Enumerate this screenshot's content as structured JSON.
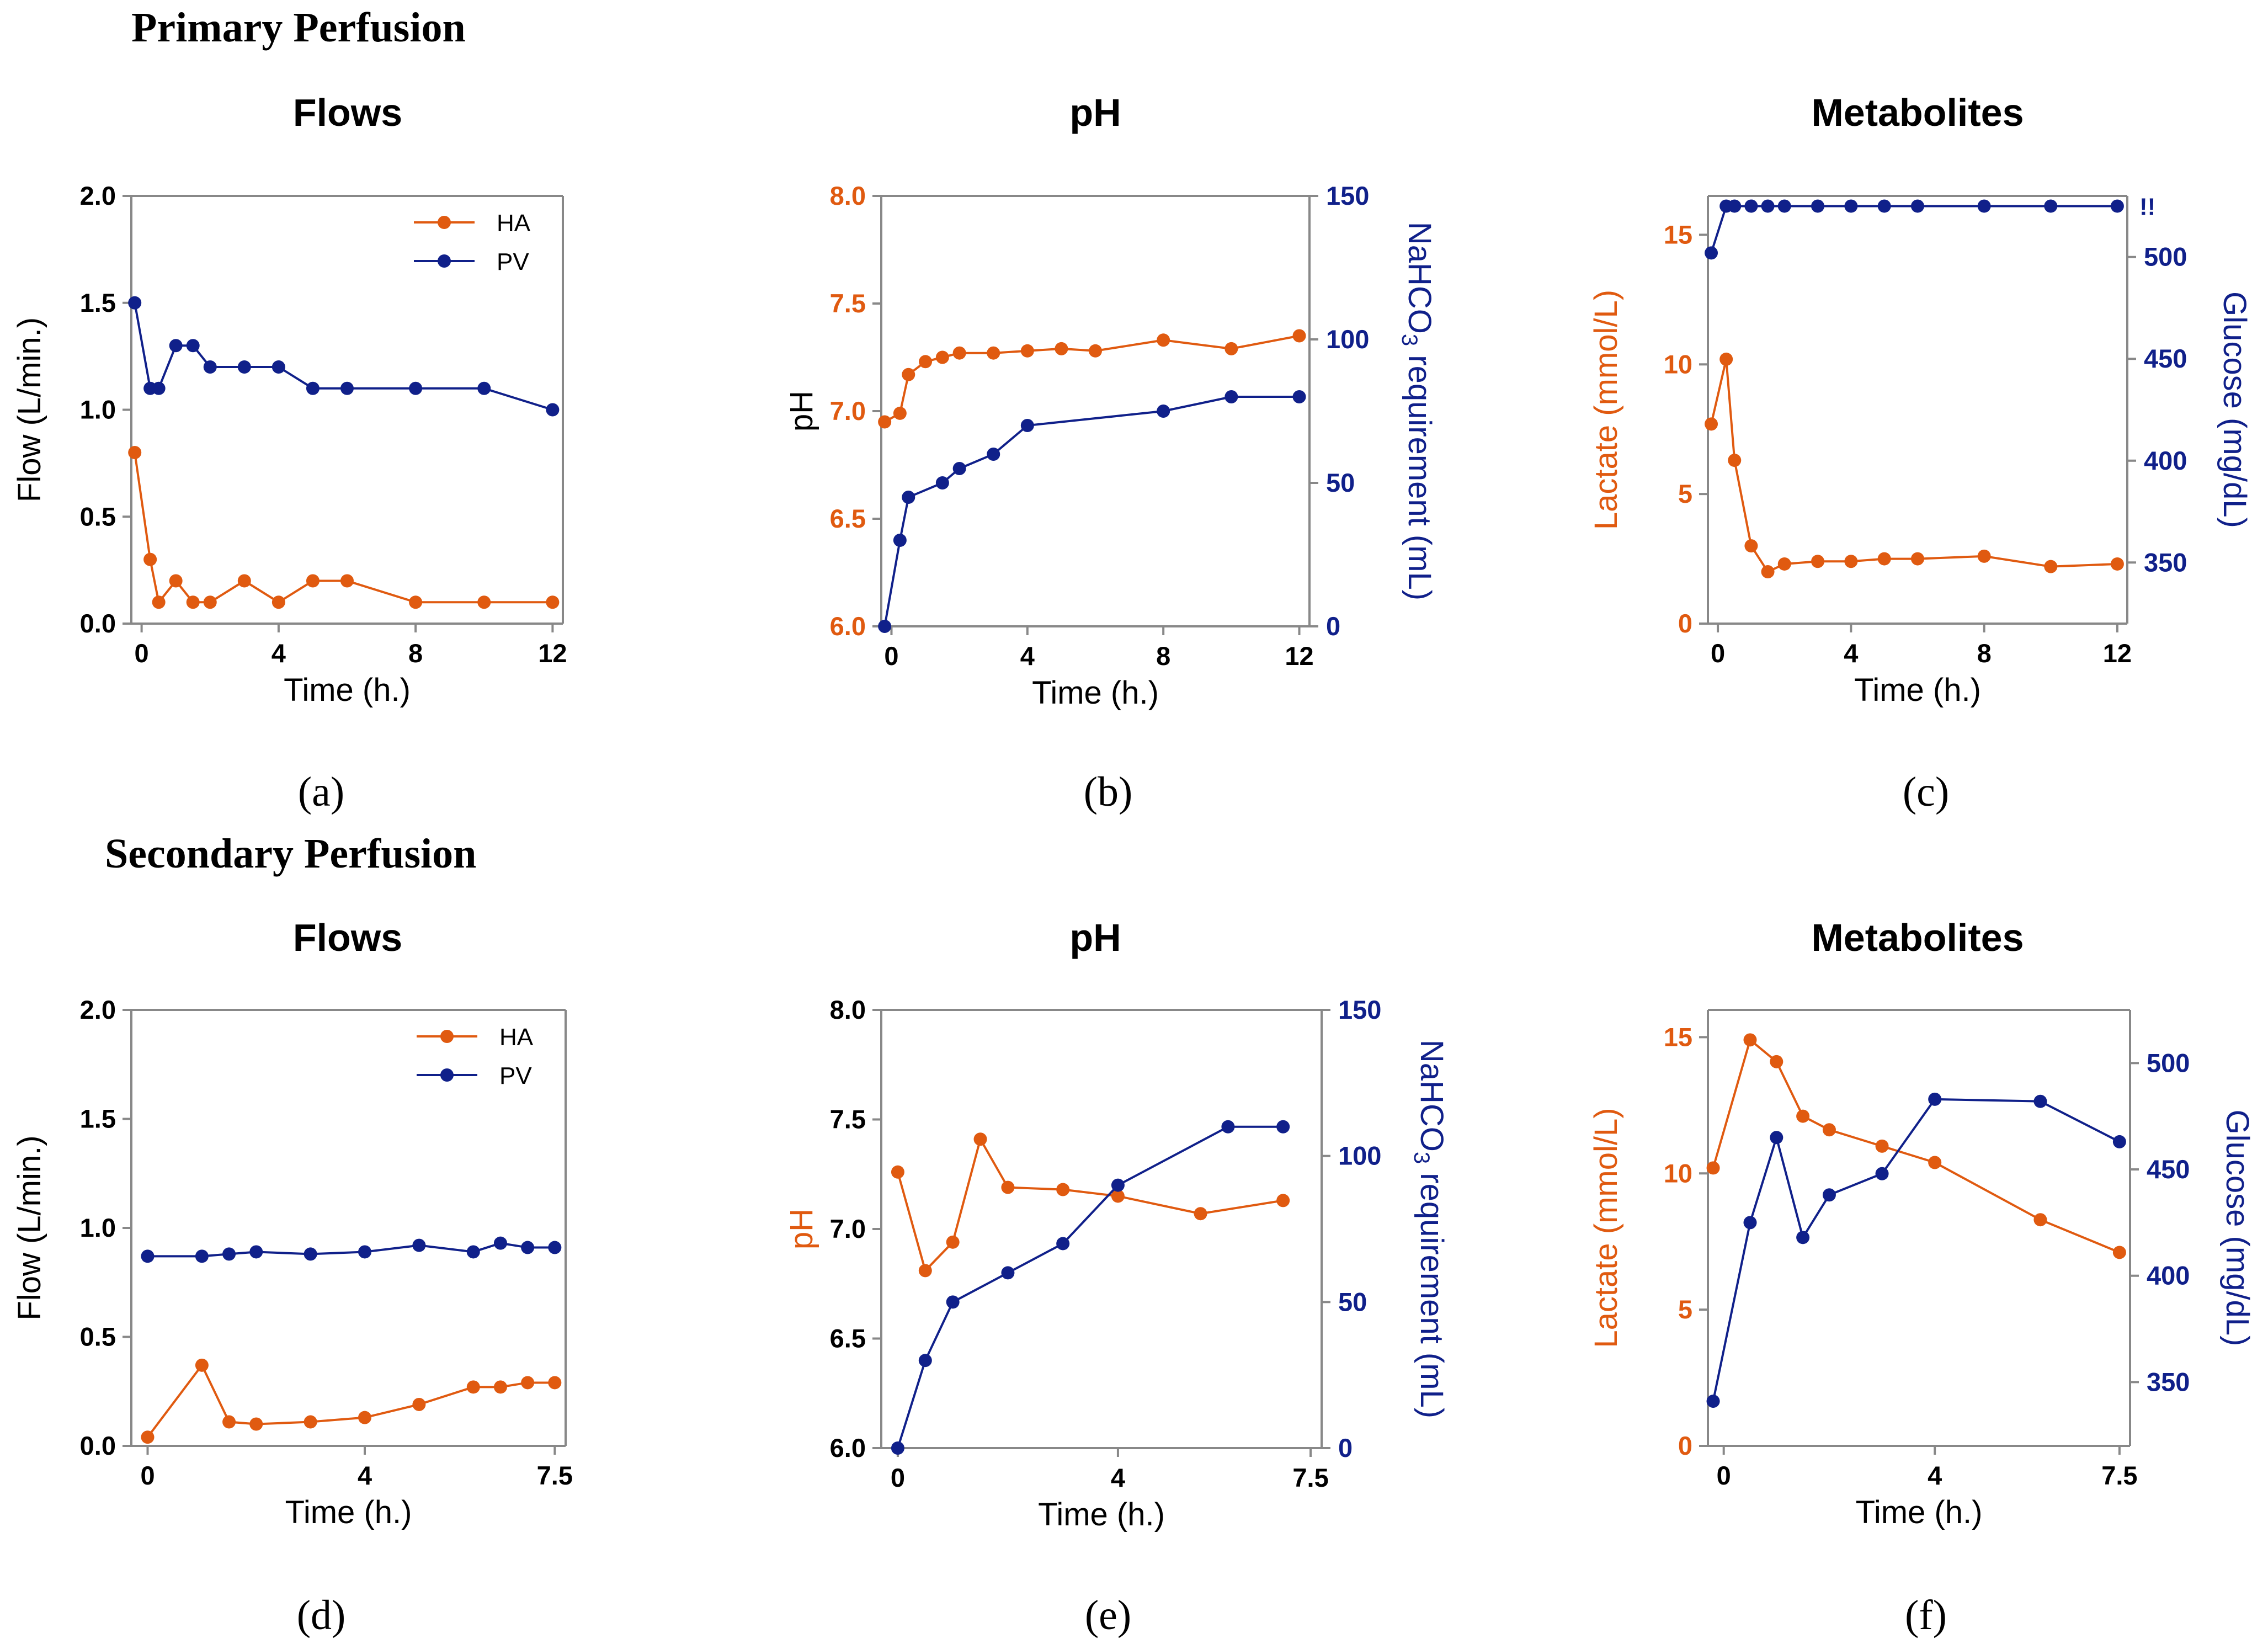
{
  "sections": [
    "Primary Perfusion",
    "Secondary Perfusion"
  ],
  "colors": {
    "orange": "#e05a10",
    "navy": "#10208a",
    "axis": "#888888"
  },
  "chart_data": [
    {
      "id": "a",
      "label": "(a)",
      "type": "line",
      "title": "Flows",
      "xlabel": "Time (h.)",
      "ylabel": "Flow (L/min.)",
      "xlim": [
        -0.3,
        12.3
      ],
      "xticks": [
        0,
        4,
        8,
        12
      ],
      "xtick_labels": [
        "0",
        "4",
        "8",
        "12"
      ],
      "left_axis": {
        "lim": [
          0,
          2
        ],
        "ticks": [
          0,
          0.5,
          1,
          1.5,
          2
        ],
        "tick_labels": [
          "0.0",
          "0.5",
          "1.0",
          "1.5",
          "2.0"
        ],
        "color": "black"
      },
      "legend": "top-right",
      "series": [
        {
          "name": "HA",
          "axis": "left",
          "color": "orange",
          "x": [
            -0.2,
            0.25,
            0.5,
            1,
            1.5,
            2,
            3,
            4,
            5,
            6,
            8,
            10,
            12
          ],
          "y": [
            0.8,
            0.3,
            0.1,
            0.2,
            0.1,
            0.1,
            0.2,
            0.1,
            0.2,
            0.2,
            0.1,
            0.1,
            0.1
          ]
        },
        {
          "name": "PV",
          "axis": "left",
          "color": "navy",
          "x": [
            -0.2,
            0.25,
            0.5,
            1,
            1.5,
            2,
            3,
            4,
            5,
            6,
            8,
            10,
            12
          ],
          "y": [
            1.5,
            1.1,
            1.1,
            1.3,
            1.3,
            1.2,
            1.2,
            1.2,
            1.1,
            1.1,
            1.1,
            1.1,
            1.0
          ]
        }
      ]
    },
    {
      "id": "b",
      "label": "(b)",
      "type": "line",
      "title": "pH",
      "xlabel": "Time (h.)",
      "ylabel": "pH",
      "y2label_main": "NaHCO",
      "y2label_sub": "3",
      "y2label_rest": " requirement (mL)",
      "xlim": [
        -0.3,
        12.3
      ],
      "xticks": [
        0,
        4,
        8,
        12
      ],
      "xtick_labels": [
        "0",
        "4",
        "8",
        "12"
      ],
      "left_axis": {
        "lim": [
          6.0,
          8.0
        ],
        "ticks": [
          6.0,
          6.5,
          7.0,
          7.5,
          8.0
        ],
        "tick_labels": [
          "6.0",
          "6.5",
          "7.0",
          "7.5",
          "8.0"
        ],
        "color": "orange"
      },
      "right_axis": {
        "lim": [
          0,
          150
        ],
        "ticks": [
          0,
          50,
          100,
          150
        ],
        "tick_labels": [
          "0",
          "50",
          "100",
          "150"
        ],
        "color": "navy"
      },
      "series": [
        {
          "name": "pH",
          "axis": "left",
          "color": "orange",
          "x": [
            -0.2,
            0.25,
            0.5,
            1,
            1.5,
            2,
            3,
            4,
            5,
            6,
            8,
            10,
            12
          ],
          "y": [
            6.95,
            6.99,
            7.17,
            7.23,
            7.25,
            7.27,
            7.27,
            7.28,
            7.29,
            7.28,
            7.33,
            7.29,
            7.35
          ]
        },
        {
          "name": "NaHCO3",
          "axis": "right",
          "color": "navy",
          "x": [
            -0.2,
            0.25,
            0.5,
            1.5,
            2,
            3,
            4,
            8,
            10,
            12
          ],
          "y": [
            0,
            30,
            45,
            50,
            55,
            60,
            70,
            75,
            80,
            80
          ]
        }
      ]
    },
    {
      "id": "c",
      "label": "(c)",
      "type": "line",
      "title": "Metabolites",
      "xlabel": "Time (h.)",
      "ylabel": "Lactate (mmol/L)",
      "y2label": "Glucose (mg/dL)",
      "annotation": "!!",
      "xlim": [
        -0.3,
        12.3
      ],
      "xticks": [
        0,
        4,
        8,
        12
      ],
      "xtick_labels": [
        "0",
        "4",
        "8",
        "12"
      ],
      "left_axis": {
        "lim": [
          0,
          16.5
        ],
        "ticks": [
          0,
          5,
          10,
          15
        ],
        "tick_labels": [
          "0",
          "5",
          "10",
          "15"
        ],
        "color": "orange"
      },
      "right_axis": {
        "lim": [
          320,
          530
        ],
        "ticks": [
          350,
          400,
          450,
          500
        ],
        "tick_labels": [
          "350",
          "400",
          "450",
          "500"
        ],
        "color": "navy"
      },
      "series": [
        {
          "name": "Lactate",
          "axis": "left",
          "color": "orange",
          "x": [
            -0.2,
            0.25,
            0.5,
            1,
            1.5,
            2,
            3,
            4,
            5,
            6,
            8,
            10,
            12
          ],
          "y": [
            7.7,
            10.2,
            6.3,
            3.0,
            2.0,
            2.3,
            2.4,
            2.4,
            2.5,
            2.5,
            2.6,
            2.2,
            2.3
          ]
        },
        {
          "name": "Glucose",
          "axis": "right",
          "color": "navy",
          "x": [
            -0.2,
            0.25,
            0.5,
            1,
            1.5,
            2,
            3,
            4,
            5,
            6,
            8,
            10,
            12
          ],
          "y": [
            502,
            525,
            525,
            525,
            525,
            525,
            525,
            525,
            525,
            525,
            525,
            525,
            525
          ]
        }
      ]
    },
    {
      "id": "d",
      "label": "(d)",
      "type": "line",
      "title": "Flows",
      "xlabel": "Time (h.)",
      "ylabel": "Flow (L/min.)",
      "xlim": [
        -0.3,
        7.7
      ],
      "xticks": [
        0,
        4,
        7.5
      ],
      "xtick_labels": [
        "0",
        "4",
        "7.5"
      ],
      "left_axis": {
        "lim": [
          0,
          2
        ],
        "ticks": [
          0,
          0.5,
          1,
          1.5,
          2
        ],
        "tick_labels": [
          "0.0",
          "0.5",
          "1.0",
          "1.5",
          "2.0"
        ],
        "color": "black"
      },
      "legend": "top-right",
      "series": [
        {
          "name": "HA",
          "axis": "left",
          "color": "orange",
          "x": [
            0,
            1,
            1.5,
            2,
            3,
            4,
            5,
            6,
            6.5,
            7,
            7.5
          ],
          "y": [
            0.04,
            0.37,
            0.11,
            0.1,
            0.11,
            0.13,
            0.19,
            0.27,
            0.27,
            0.29,
            0.29
          ]
        },
        {
          "name": "PV",
          "axis": "left",
          "color": "navy",
          "x": [
            0,
            1,
            1.5,
            2,
            3,
            4,
            5,
            6,
            6.5,
            7,
            7.5
          ],
          "y": [
            0.87,
            0.87,
            0.88,
            0.89,
            0.88,
            0.89,
            0.92,
            0.89,
            0.93,
            0.91,
            0.91
          ]
        }
      ]
    },
    {
      "id": "e",
      "label": "(e)",
      "type": "line",
      "title": "pH",
      "xlabel": "Time (h.)",
      "ylabel": "pH",
      "y2label_main": "NaHCO",
      "y2label_sub": "3",
      "y2label_rest": " requirement (mL)",
      "xlim": [
        -0.3,
        7.7
      ],
      "xticks": [
        0,
        4,
        7.5
      ],
      "xtick_labels": [
        "0",
        "4",
        "7.5"
      ],
      "left_axis": {
        "lim": [
          6.0,
          8.0
        ],
        "ticks": [
          6.0,
          6.5,
          7.0,
          7.5,
          8.0
        ],
        "tick_labels": [
          "6.0",
          "6.5",
          "7.0",
          "7.5",
          "8.0"
        ],
        "color": "black"
      },
      "right_axis": {
        "lim": [
          0,
          150
        ],
        "ticks": [
          0,
          50,
          100,
          150
        ],
        "tick_labels": [
          "0",
          "50",
          "100",
          "150"
        ],
        "color": "navy"
      },
      "series": [
        {
          "name": "pH",
          "axis": "left",
          "color": "orange",
          "x": [
            0,
            0.5,
            1,
            1.5,
            2,
            3,
            4,
            5.5,
            7
          ],
          "y": [
            7.26,
            6.81,
            6.94,
            7.41,
            7.19,
            7.18,
            7.15,
            7.07,
            7.13
          ]
        },
        {
          "name": "NaHCO3",
          "axis": "right",
          "color": "navy",
          "x": [
            0,
            0.5,
            1,
            2,
            3,
            4,
            6,
            7
          ],
          "y": [
            0,
            30,
            50,
            60,
            70,
            90,
            110,
            110
          ]
        }
      ]
    },
    {
      "id": "f",
      "label": "(f)",
      "type": "line",
      "title": "Metabolites",
      "xlabel": "Time (h.)",
      "ylabel": "Lactate (mmol/L)",
      "y2label": "Glucose (mg/dL)",
      "xlim": [
        -0.3,
        7.7
      ],
      "xticks": [
        0,
        4,
        7.5
      ],
      "xtick_labels": [
        "0",
        "4",
        "7.5"
      ],
      "left_axis": {
        "lim": [
          0,
          16
        ],
        "ticks": [
          0,
          5,
          10,
          15
        ],
        "tick_labels": [
          "0",
          "5",
          "10",
          "15"
        ],
        "color": "orange"
      },
      "right_axis": {
        "lim": [
          320,
          525
        ],
        "ticks": [
          350,
          400,
          450,
          500
        ],
        "tick_labels": [
          "350",
          "400",
          "450",
          "500"
        ],
        "color": "navy"
      },
      "series": [
        {
          "name": "Lactate",
          "axis": "left",
          "color": "orange",
          "x": [
            -0.2,
            0.5,
            1,
            1.5,
            2,
            3,
            4,
            6,
            7.5
          ],
          "y": [
            10.2,
            14.9,
            14.1,
            12.1,
            11.6,
            11.0,
            10.4,
            8.3,
            7.1
          ]
        },
        {
          "name": "Glucose",
          "axis": "right",
          "color": "navy",
          "x": [
            -0.2,
            0.5,
            1,
            1.5,
            2,
            3,
            4,
            6,
            7.5
          ],
          "y": [
            341,
            425,
            465,
            418,
            438,
            448,
            483,
            482,
            463
          ]
        }
      ]
    }
  ]
}
